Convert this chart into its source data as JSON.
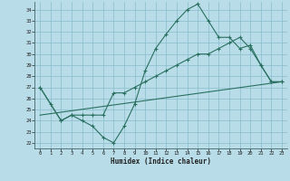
{
  "xlabel": "Humidex (Indice chaleur)",
  "bg_color": "#b8dde8",
  "grid_color": "#88bbcc",
  "line_color": "#2a7060",
  "xlim": [
    -0.5,
    23.5
  ],
  "ylim": [
    21.5,
    34.7
  ],
  "yticks": [
    22,
    23,
    24,
    25,
    26,
    27,
    28,
    29,
    30,
    31,
    32,
    33,
    34
  ],
  "xticks": [
    0,
    1,
    2,
    3,
    4,
    5,
    6,
    7,
    8,
    9,
    10,
    11,
    12,
    13,
    14,
    15,
    16,
    17,
    18,
    19,
    20,
    21,
    22,
    23
  ],
  "line1_x": [
    0,
    1,
    2,
    3,
    4,
    5,
    6,
    7,
    8,
    9,
    10,
    11,
    12,
    13,
    14,
    15,
    16,
    17,
    18,
    19,
    20,
    21,
    22,
    23
  ],
  "line1_y": [
    27.0,
    25.5,
    24.0,
    24.5,
    24.0,
    23.5,
    22.5,
    22.0,
    23.5,
    25.5,
    28.5,
    30.5,
    31.8,
    33.0,
    34.0,
    34.5,
    33.0,
    31.5,
    31.5,
    30.5,
    30.8,
    29.0,
    27.5,
    27.5
  ],
  "line2_x": [
    0,
    2,
    3,
    4,
    5,
    6,
    7,
    8,
    9,
    10,
    11,
    12,
    13,
    14,
    15,
    16,
    17,
    18,
    19,
    20,
    21,
    22,
    23
  ],
  "line2_y": [
    27.0,
    24.0,
    24.5,
    24.5,
    24.5,
    24.5,
    26.5,
    26.5,
    27.0,
    27.5,
    28.0,
    28.5,
    29.0,
    29.5,
    30.0,
    30.0,
    30.5,
    31.0,
    31.5,
    30.5,
    29.0,
    27.5,
    27.5
  ],
  "line3_x": [
    0,
    23
  ],
  "line3_y": [
    24.5,
    27.5
  ]
}
